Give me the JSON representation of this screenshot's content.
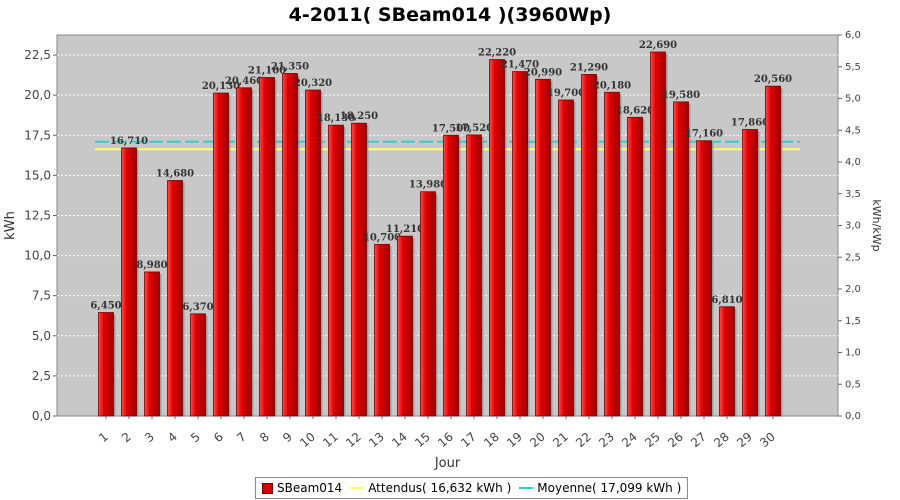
{
  "chart_data": {
    "type": "bar",
    "title": "4-2011( SBeam014 )(3960Wp)",
    "xlabel": "Jour",
    "ylabel": "kWh",
    "ylabel_right": "kWh/kWp",
    "ylim": [
      0,
      23.75
    ],
    "ylim_right": [
      0,
      6.0
    ],
    "y_ticks": [
      "0,0",
      "2,5",
      "5,0",
      "7,5",
      "10,0",
      "12,5",
      "15,0",
      "17,5",
      "20,0",
      "22,5"
    ],
    "y_ticks_right": [
      "0,0",
      "0,5",
      "1,0",
      "1,5",
      "2,0",
      "2,5",
      "3,0",
      "3,5",
      "4,0",
      "4,5",
      "5,0",
      "5,5",
      "6,0"
    ],
    "grid": true,
    "legend_position": "bottom",
    "categories": [
      "1",
      "2",
      "3",
      "4",
      "5",
      "6",
      "7",
      "8",
      "9",
      "10",
      "11",
      "12",
      "13",
      "14",
      "15",
      "16",
      "17",
      "18",
      "19",
      "20",
      "21",
      "22",
      "23",
      "24",
      "25",
      "26",
      "27",
      "28",
      "29",
      "30"
    ],
    "series": [
      {
        "name": "SBeam014",
        "color": "#dd0000",
        "values": [
          6.45,
          16.71,
          8.98,
          14.68,
          6.37,
          20.13,
          20.46,
          21.1,
          21.35,
          20.32,
          18.13,
          18.25,
          10.7,
          11.21,
          13.98,
          17.5,
          17.52,
          22.22,
          21.47,
          20.99,
          19.7,
          21.29,
          20.18,
          18.62,
          22.69,
          19.58,
          17.16,
          6.81,
          17.86,
          20.56
        ],
        "labels": [
          "6,450",
          "16,710",
          "8,980",
          "14,680",
          "6,370",
          "20,130",
          "20,460",
          "21,100",
          "21,350",
          "20,320",
          "18,130",
          "18,250",
          "10,700",
          "11,210",
          "13,980",
          "17,500",
          "17,520",
          "22,220",
          "21,470",
          "20,990",
          "19,700",
          "21,290",
          "20,180",
          "18,620",
          "22,690",
          "19,580",
          "17,160",
          "6,810",
          "17,860",
          "20,560"
        ]
      }
    ],
    "reference_lines": [
      {
        "name": "Attendus( 16,632 kWh )",
        "value": 16.632,
        "color": "#ffff66"
      },
      {
        "name": "Moyenne( 17,099 kWh )",
        "value": 17.099,
        "color": "#33cccc"
      }
    ]
  }
}
